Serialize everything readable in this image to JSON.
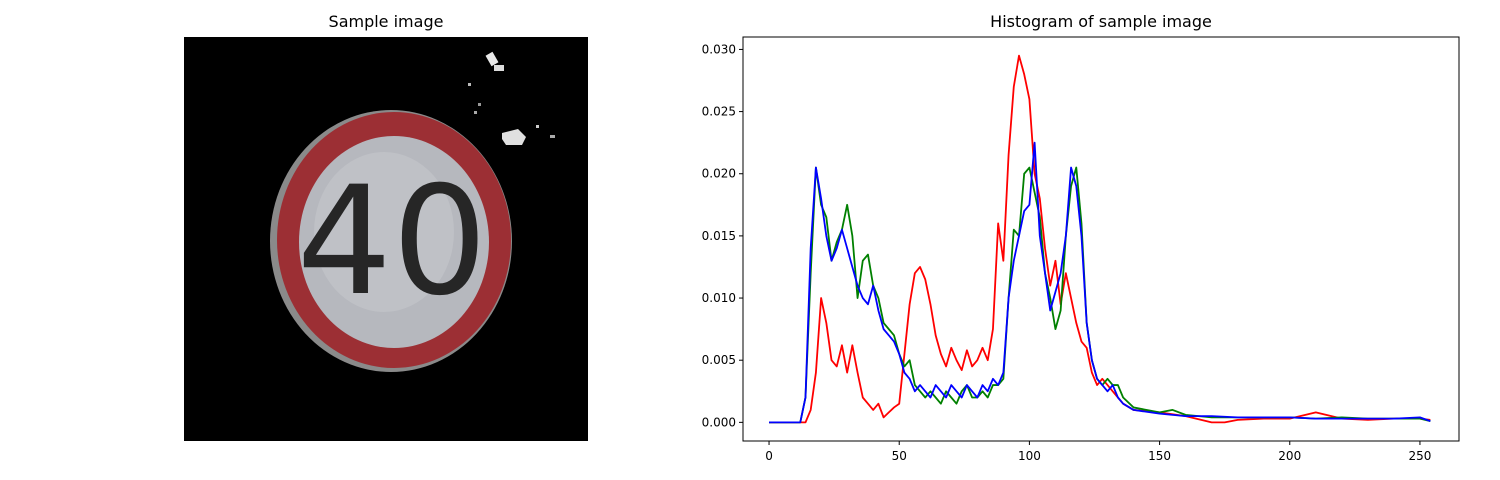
{
  "image_panel": {
    "title": "Sample image",
    "icon": "speed-limit-sign-image",
    "sign_text": "40"
  },
  "chart_data": {
    "type": "line",
    "title": "Histogram of sample image",
    "xlabel": "",
    "ylabel": "",
    "xlim": [
      -10,
      265
    ],
    "ylim": [
      -0.0015,
      0.031
    ],
    "xticks": [
      0,
      50,
      100,
      150,
      200,
      250
    ],
    "yticks": [
      0.0,
      0.005,
      0.01,
      0.015,
      0.02,
      0.025,
      0.03
    ],
    "ytick_labels": [
      "0.000",
      "0.005",
      "0.010",
      "0.015",
      "0.020",
      "0.025",
      "0.030"
    ],
    "grid": false,
    "legend": "none",
    "series": [
      {
        "color": "#ff0000",
        "x": [
          0,
          5,
          10,
          12,
          14,
          16,
          18,
          20,
          22,
          24,
          26,
          28,
          30,
          32,
          34,
          36,
          38,
          40,
          42,
          44,
          46,
          48,
          50,
          52,
          54,
          56,
          58,
          60,
          62,
          64,
          66,
          68,
          70,
          72,
          74,
          76,
          78,
          80,
          82,
          84,
          86,
          88,
          90,
          92,
          94,
          96,
          98,
          100,
          102,
          104,
          106,
          108,
          110,
          112,
          114,
          116,
          118,
          120,
          122,
          124,
          126,
          128,
          130,
          132,
          134,
          136,
          140,
          150,
          160,
          170,
          175,
          180,
          190,
          200,
          210,
          220,
          230,
          240,
          250,
          254
        ],
        "y": [
          0,
          0,
          0,
          0,
          0,
          0.001,
          0.004,
          0.01,
          0.008,
          0.005,
          0.0045,
          0.0062,
          0.004,
          0.0062,
          0.004,
          0.002,
          0.0015,
          0.001,
          0.0015,
          0.0004,
          0.0008,
          0.0012,
          0.0015,
          0.0055,
          0.0095,
          0.012,
          0.0125,
          0.0115,
          0.0095,
          0.007,
          0.0055,
          0.0045,
          0.006,
          0.005,
          0.0042,
          0.0058,
          0.0045,
          0.005,
          0.006,
          0.005,
          0.0075,
          0.016,
          0.013,
          0.0215,
          0.027,
          0.0295,
          0.028,
          0.026,
          0.02,
          0.018,
          0.014,
          0.011,
          0.013,
          0.0095,
          0.012,
          0.01,
          0.008,
          0.0065,
          0.006,
          0.004,
          0.003,
          0.0035,
          0.003,
          0.0025,
          0.002,
          0.0015,
          0.001,
          0.0008,
          0.0005,
          0,
          0,
          0.0002,
          0.0003,
          0.0003,
          0.0008,
          0.0003,
          0.0002,
          0.0003,
          0.0003,
          0.0002
        ]
      },
      {
        "color": "#008000",
        "x": [
          0,
          5,
          10,
          12,
          14,
          16,
          18,
          20,
          22,
          24,
          26,
          28,
          30,
          32,
          34,
          36,
          38,
          40,
          42,
          44,
          46,
          48,
          50,
          52,
          54,
          56,
          58,
          60,
          62,
          64,
          66,
          68,
          70,
          72,
          74,
          76,
          78,
          80,
          82,
          84,
          86,
          88,
          90,
          92,
          94,
          96,
          98,
          100,
          102,
          104,
          106,
          108,
          110,
          112,
          114,
          116,
          118,
          120,
          122,
          124,
          126,
          128,
          130,
          132,
          134,
          136,
          140,
          150,
          155,
          160,
          170,
          180,
          190,
          200,
          210,
          220,
          230,
          240,
          250,
          254
        ],
        "y": [
          0,
          0,
          0,
          0,
          0.002,
          0.012,
          0.0205,
          0.0175,
          0.0165,
          0.013,
          0.0145,
          0.0155,
          0.0175,
          0.015,
          0.01,
          0.013,
          0.0135,
          0.011,
          0.01,
          0.008,
          0.0075,
          0.007,
          0.0055,
          0.0045,
          0.005,
          0.003,
          0.0025,
          0.002,
          0.0025,
          0.002,
          0.0015,
          0.0025,
          0.002,
          0.0015,
          0.0025,
          0.003,
          0.002,
          0.002,
          0.0025,
          0.002,
          0.003,
          0.003,
          0.0035,
          0.01,
          0.0155,
          0.015,
          0.02,
          0.0205,
          0.0185,
          0.0165,
          0.012,
          0.01,
          0.0075,
          0.009,
          0.015,
          0.019,
          0.0205,
          0.016,
          0.008,
          0.005,
          0.0035,
          0.003,
          0.0035,
          0.003,
          0.003,
          0.002,
          0.0012,
          0.0008,
          0.001,
          0.0006,
          0.0004,
          0.0004,
          0.0004,
          0.0004,
          0.0003,
          0.0004,
          0.0003,
          0.0003,
          0.0003,
          0.0001
        ]
      },
      {
        "color": "#0000ff",
        "x": [
          0,
          5,
          10,
          12,
          14,
          16,
          18,
          20,
          22,
          24,
          26,
          28,
          30,
          32,
          34,
          36,
          38,
          40,
          42,
          44,
          46,
          48,
          50,
          52,
          54,
          56,
          58,
          60,
          62,
          64,
          66,
          68,
          70,
          72,
          74,
          76,
          78,
          80,
          82,
          84,
          86,
          88,
          90,
          92,
          94,
          96,
          98,
          100,
          102,
          104,
          106,
          108,
          110,
          112,
          114,
          116,
          118,
          120,
          122,
          124,
          126,
          128,
          130,
          132,
          134,
          136,
          140,
          150,
          160,
          170,
          180,
          190,
          200,
          210,
          220,
          230,
          240,
          250,
          254
        ],
        "y": [
          0,
          0,
          0,
          0,
          0.002,
          0.014,
          0.0205,
          0.018,
          0.015,
          0.013,
          0.014,
          0.0155,
          0.014,
          0.0125,
          0.011,
          0.01,
          0.0095,
          0.011,
          0.009,
          0.0075,
          0.007,
          0.0065,
          0.0055,
          0.004,
          0.0035,
          0.0025,
          0.003,
          0.0025,
          0.002,
          0.003,
          0.0025,
          0.002,
          0.003,
          0.0025,
          0.002,
          0.003,
          0.0025,
          0.002,
          0.003,
          0.0025,
          0.0035,
          0.003,
          0.004,
          0.01,
          0.013,
          0.015,
          0.017,
          0.0175,
          0.0225,
          0.015,
          0.012,
          0.009,
          0.0105,
          0.012,
          0.015,
          0.0205,
          0.019,
          0.015,
          0.008,
          0.005,
          0.0035,
          0.003,
          0.0025,
          0.003,
          0.002,
          0.0015,
          0.001,
          0.0007,
          0.0005,
          0.0005,
          0.0004,
          0.0004,
          0.0004,
          0.0003,
          0.0003,
          0.0003,
          0.0003,
          0.0004,
          0.0001
        ]
      }
    ]
  }
}
